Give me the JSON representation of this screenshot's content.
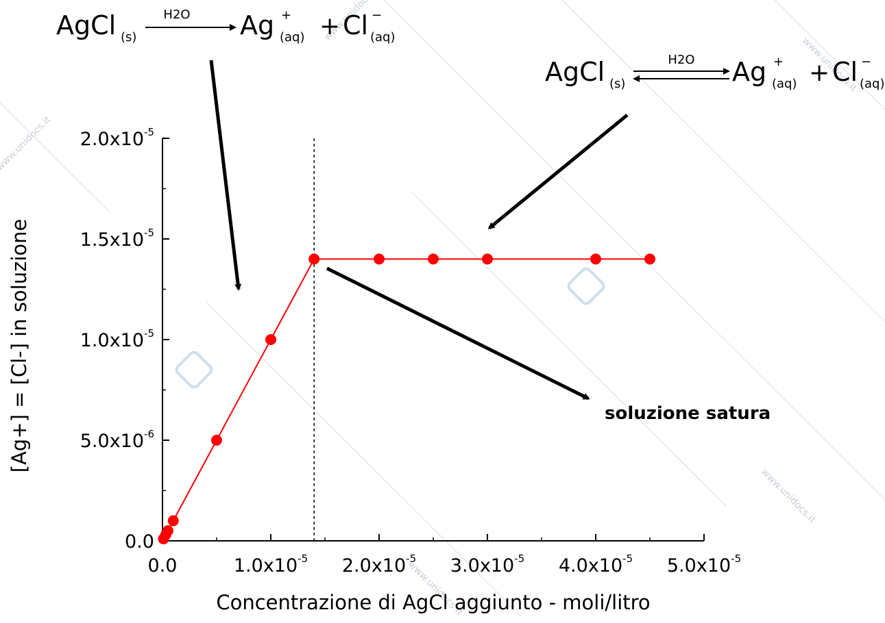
{
  "chart_data": {
    "type": "line",
    "xlabel": "Concentrazione di AgCl aggiunto - moli/litro",
    "ylabel": "[Ag+] = [Cl-] in soluzione",
    "xlim": [
      0,
      5e-05
    ],
    "ylim": [
      0,
      2e-05
    ],
    "x_ticks": [
      {
        "value": 0,
        "mant": "0.0",
        "exp": ""
      },
      {
        "value": 1e-05,
        "mant": "1.0x10",
        "exp": "-5"
      },
      {
        "value": 2e-05,
        "mant": "2.0x10",
        "exp": "-5"
      },
      {
        "value": 3e-05,
        "mant": "3.0x10",
        "exp": "-5"
      },
      {
        "value": 4e-05,
        "mant": "4.0x10",
        "exp": "-5"
      },
      {
        "value": 5e-05,
        "mant": "5.0x10",
        "exp": "-5"
      }
    ],
    "y_ticks": [
      {
        "value": 0,
        "mant": "0.0",
        "exp": ""
      },
      {
        "value": 5e-06,
        "mant": "5.0x10",
        "exp": "-6"
      },
      {
        "value": 1e-05,
        "mant": "1.0x10",
        "exp": "-5"
      },
      {
        "value": 1.5e-05,
        "mant": "1.5x10",
        "exp": "-5"
      },
      {
        "value": 2e-05,
        "mant": "2.0x10",
        "exp": "-5"
      }
    ],
    "series": [
      {
        "color": "#ff0000",
        "x": [
          1e-07,
          3e-07,
          5e-07,
          1e-06,
          5e-06,
          1e-05,
          1.4e-05,
          2e-05,
          2.5e-05,
          3e-05,
          4e-05,
          4.5e-05
        ],
        "y": [
          1e-07,
          3e-07,
          5e-07,
          1e-06,
          5e-06,
          1e-05,
          1.4e-05,
          1.4e-05,
          1.4e-05,
          1.4e-05,
          1.4e-05,
          1.4e-05
        ]
      }
    ],
    "saturation_x": 1.4e-05,
    "annotations": [
      {
        "text": "soluzione satura"
      }
    ],
    "equation_left": {
      "solid": "AgCl",
      "solid_phase": "(s)",
      "over_arrow": "H2O",
      "cation": "Ag",
      "cation_charge": "+",
      "cation_phase": "(aq)",
      "plus": "+",
      "anion": "Cl",
      "anion_charge": "−",
      "anion_phase": "(aq)"
    },
    "equation_right": {
      "solid": "AgCl",
      "solid_phase": "(s)",
      "over_arrow": "H2O",
      "cation": "Ag",
      "cation_charge": "+",
      "cation_phase": "(aq)",
      "plus": "+",
      "anion": "Cl",
      "anion_charge": "−",
      "anion_phase": "(aq)"
    },
    "grid": false,
    "legend": "none",
    "watermark": "www.unidocs.it",
    "colors": {
      "series": "#ff0000",
      "axis": "#000000",
      "watermark": "#c6cfd8"
    }
  }
}
